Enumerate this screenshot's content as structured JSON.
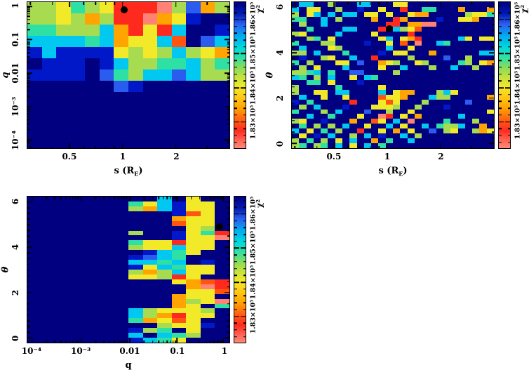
{
  "figure": {
    "description": "chi-squared parameter grid maps"
  },
  "palette": {
    "n": "#000080",
    "b": "#0018c8",
    "B": "#2b5cf0",
    "c": "#00c8f0",
    "t": "#2fe0a4",
    "g": "#a8dc50",
    "y": "#f2ea28",
    "o": "#ffa400",
    "O": "#ff5510",
    "r": "#ff2a1e",
    "s": "#ff8274"
  },
  "colorbar": {
    "title": "χ²",
    "tick_labels": [
      {
        "label": "1.86×10⁵",
        "pct": 12
      },
      {
        "label": "1.85×10⁵",
        "pct": 35.3
      },
      {
        "label": "1.84×10⁵",
        "pct": 58.7
      },
      {
        "label": "1.83×10⁵",
        "pct": 82
      }
    ],
    "minor_pct": [
      2.7,
      7.3,
      16.7,
      21.3,
      26.0,
      30.7,
      40.0,
      44.7,
      49.3,
      54.0,
      63.3,
      68.0,
      72.7,
      77.3,
      86.7,
      91.3,
      96.0
    ],
    "gradient": [
      [
        "0",
        "#000080"
      ],
      [
        "8",
        "#001ab4"
      ],
      [
        "15",
        "#2b5cf0"
      ],
      [
        "23",
        "#00aaf0"
      ],
      [
        "31",
        "#00d8dc"
      ],
      [
        "38",
        "#2fe0a4"
      ],
      [
        "45",
        "#8cdc5a"
      ],
      [
        "52",
        "#c8e23c"
      ],
      [
        "58",
        "#f2ea28"
      ],
      [
        "66",
        "#ffc414"
      ],
      [
        "73",
        "#ffa000"
      ],
      [
        "80",
        "#ff6414"
      ],
      [
        "88",
        "#ff2a1e"
      ],
      [
        "94",
        "#ff5f50"
      ],
      [
        "100",
        "#ff8a7a"
      ]
    ]
  },
  "chart_data": [
    {
      "id": "A",
      "type": "heatmap",
      "xlabel_html": "s (R<sub>E</sub>)",
      "ylabel": "q",
      "x_scale": "log",
      "y_scale": "log",
      "x_range": [
        "0.3",
        "4"
      ],
      "y_range": [
        "1e-4",
        "1.3"
      ],
      "x_ticks": [
        {
          "label": "0.5",
          "pct": 21.0
        },
        {
          "label": "1",
          "pct": 47.2
        },
        {
          "label": "2",
          "pct": 73.6
        }
      ],
      "x_minor_pct": [
        1.4,
        12.4,
        27.8,
        33.7,
        38.8,
        43.2,
        89.0
      ],
      "y_ticks": [
        {
          "label": "1",
          "pct": 2.9
        },
        {
          "label": "0.1",
          "pct": 25.7
        },
        {
          "label": "0.01",
          "pct": 48.6
        },
        {
          "label": "10⁻³",
          "pct": 71.4
        },
        {
          "label": "10⁻⁴",
          "pct": 94.3
        }
      ],
      "y_minor_pct": [
        3.9,
        5.1,
        6.4,
        8.0,
        9.8,
        12.0,
        14.8,
        18.8,
        26.8,
        27.9,
        29.2,
        30.8,
        32.6,
        34.8,
        37.6,
        41.6,
        49.7,
        50.8,
        52.1,
        53.7,
        55.5,
        57.7,
        60.5,
        64.5,
        72.5,
        73.6,
        74.9,
        76.5,
        78.3,
        80.5,
        83.3,
        87.3,
        95.3,
        96.5
      ],
      "marker": {
        "x_pct": 47.9,
        "y_pct": 5.2,
        "at": "s=1, q≈0.9"
      },
      "grid": [
        "ggytgyrrrsgBog",
        "ggygogrrsoybnn",
        "ttgggcoryrcnnb",
        "cccctcoyycOnBc",
        "bcbbbbygygcgyo",
        "nbbbnbcggttcgt",
        "bbbbnBtgccBcgg",
        "nnnnnnBbnnnnnn",
        "nnnnnnnnnnnnnn",
        "nnnnnnnnnnnnnn",
        "nnnnnnnnnnnnnn",
        "nnnnnnnnnnnnnn",
        "nnnnnnnnnnnnnn"
      ]
    },
    {
      "id": "B",
      "type": "heatmap",
      "xlabel_html": "s (R<sub>E</sub>)",
      "ylabel": "θ",
      "x_scale": "log",
      "y_scale": "linear",
      "x_range": [
        "0.3",
        "4"
      ],
      "y_range": [
        "0",
        "6.28"
      ],
      "x_ticks": [
        {
          "label": "0.5",
          "pct": 21.0
        },
        {
          "label": "1",
          "pct": 47.2
        },
        {
          "label": "2",
          "pct": 73.6
        }
      ],
      "x_minor_pct": [
        1.4,
        12.4,
        27.8,
        33.7,
        38.8,
        43.2,
        89.0
      ],
      "y_ticks": [
        {
          "label": "6",
          "pct": 3.8
        },
        {
          "label": "4",
          "pct": 34.8
        },
        {
          "label": "2",
          "pct": 65.7
        },
        {
          "label": "0",
          "pct": 96.7
        }
      ],
      "y_minor_pct": [
        7.7,
        11.6,
        15.4,
        19.3,
        23.2,
        27.1,
        31.0,
        38.7,
        42.5,
        46.4,
        50.3,
        54.2,
        58.0,
        61.9,
        69.6,
        73.5,
        77.4,
        81.2,
        85.1,
        89.0,
        92.9
      ],
      "marker": {
        "x_pct": 48.2,
        "y_pct": 18.3,
        "at": "s=1, θ≈4.9"
      },
      "grid": [
        "nccnngnnnccnnnyynnnnnnnnnnnn",
        "cnyynngnnbnnynnrnnttnnnonnno",
        "gnycncnccnyynynnyoonnnnngyyt",
        "ttnncngnnnnonnronnnnbnnyyonn",
        "ngnncnnnnnnnnrrnoossnnnnnnnn",
        "nntnnnnccnnnrncgyOnnnnnnnnnn",
        "gynnnncnnnnynnnnrnnnnnnnnnnn",
        "nngtnynnnnnnycnyornnnnncynyy",
        "tnnnggnnnnbnnynOnsnnctnnnnnn",
        "ncnnnygnnnnnncnnynnnnnnnnnnn",
        "ggncnnntnnnnbnyynnnonnnnnncc",
        "nbnngynncnnrnnnngnnnnBnngnnn",
        "tngnnnyynBnnoygnnygnnnntgnyo",
        "ngnynnncnnnnynncnnngnncnngnn",
        "ggtcntnnBBnnnngnnnnnnnnnnnnn",
        "ctngncnnynctnnnnnnnnnnnnnnnn",
        "nnttnynnnbnnnnnnnnnnnnnnnnnn",
        "gnnnnntnnnnnynnnnnnnnnnnnnnn",
        "gnnyynccnnnncnyoonnngcynnnnn",
        "ncnnynnynnnnOyyonnncggnnnnno",
        "bntnnnnnrnnnyOynnngnnnnnBnnn",
        "ngncnnnbnnnyyygnngnnnbnnnnnn",
        "tnnngncnnnBnngnnynnnnnnnnnny",
        "nncnntnnnynnsrnynonnnnncnnnn",
        "gynnbnnnonnOyncnsnnnntnnngnn",
        "ntngngncnnynncnynncntggcnnon",
        "cnyntngnnrnnynonynnBngynngoy",
        "nynbncnngncnbnncngnnnnnnnnnn",
        "gntngnyncnnontnncnnnnnnnnnnn",
        "gtngtncnyncntnnnnnnnnnnnnnnn"
      ]
    },
    {
      "id": "C",
      "type": "heatmap",
      "xlabel_html": "q",
      "ylabel": "θ",
      "x_scale": "log",
      "y_scale": "linear",
      "x_range": [
        "8e-5",
        "1.5"
      ],
      "y_range": [
        "0",
        "6.28"
      ],
      "x_ticks": [
        {
          "label": "10⁻⁴",
          "pct": 2.4
        },
        {
          "label": "10⁻³",
          "pct": 26.6
        },
        {
          "label": "0.01",
          "pct": 50.7
        },
        {
          "label": "0.1",
          "pct": 74.1
        },
        {
          "label": "1",
          "pct": 97.2
        }
      ],
      "x_minor_pct": [
        9.5,
        13.7,
        16.7,
        19.0,
        20.8,
        22.4,
        23.8,
        25.0,
        33.7,
        37.9,
        40.9,
        43.2,
        45.0,
        46.6,
        48.0,
        49.2,
        57.8,
        62.0,
        65.0,
        67.3,
        69.1,
        70.7,
        72.1,
        73.3,
        81.2,
        85.4,
        88.4,
        90.7,
        92.5,
        94.1,
        95.5,
        96.7
      ],
      "y_ticks": [
        {
          "label": "6",
          "pct": 3.8
        },
        {
          "label": "4",
          "pct": 34.8
        },
        {
          "label": "2",
          "pct": 65.7
        },
        {
          "label": "0",
          "pct": 96.7
        }
      ],
      "y_minor_pct": [
        7.7,
        11.6,
        15.4,
        19.3,
        23.2,
        27.1,
        31.0,
        38.7,
        42.5,
        46.4,
        50.3,
        54.2,
        58.0,
        61.9,
        69.6,
        73.5,
        77.4,
        81.2,
        85.1,
        89.0,
        92.9
      ],
      "marker": {
        "x_pct": 95.0,
        "y_pct": 20.5,
        "at": "q≈1, θ≈4.9"
      },
      "grid": [
        "nnnnnnnnncnynn",
        "nnnnnnntycbyyn",
        "nnnnnnngocbyyn",
        "nnnnnnnnnnbOyn",
        "nnnnnnnnnnoyyn",
        "nnnnnnnnnnOyyn",
        "nnnnnnnnnnnygn",
        "nnnnnnngnnbytr",
        "nnnnnnnnnnbyys",
        "nnnnnnntyyryyn",
        "nnnnnnngyycyyn",
        "nnnnnnnnbctynn",
        "nnnnnnnbBctnnn",
        "nnnnnnncctcnbn",
        "nnnnnnnbyctyyn",
        "nnnnnnngogcyyn",
        "nnnnnnnyygrynn",
        "nnnnnnnnnnyoOr",
        "nnnnnnnnnnnosr",
        "nnnnnnnnnnnyyO",
        "nnnnnnnnnnoyyn",
        "nnnnnnnnnnogys",
        "nnnnnnnnnnoynt",
        "nnnnnnncgyyygn",
        "nnnnnnncgoryyn",
        "nnnnnnntoyOynn",
        "nnnnnnnnngyybn",
        "nnnnnnnbgtnynn",
        "nnnnnnncnctgnn",
        "nnnnnnnbctynnn"
      ]
    }
  ]
}
